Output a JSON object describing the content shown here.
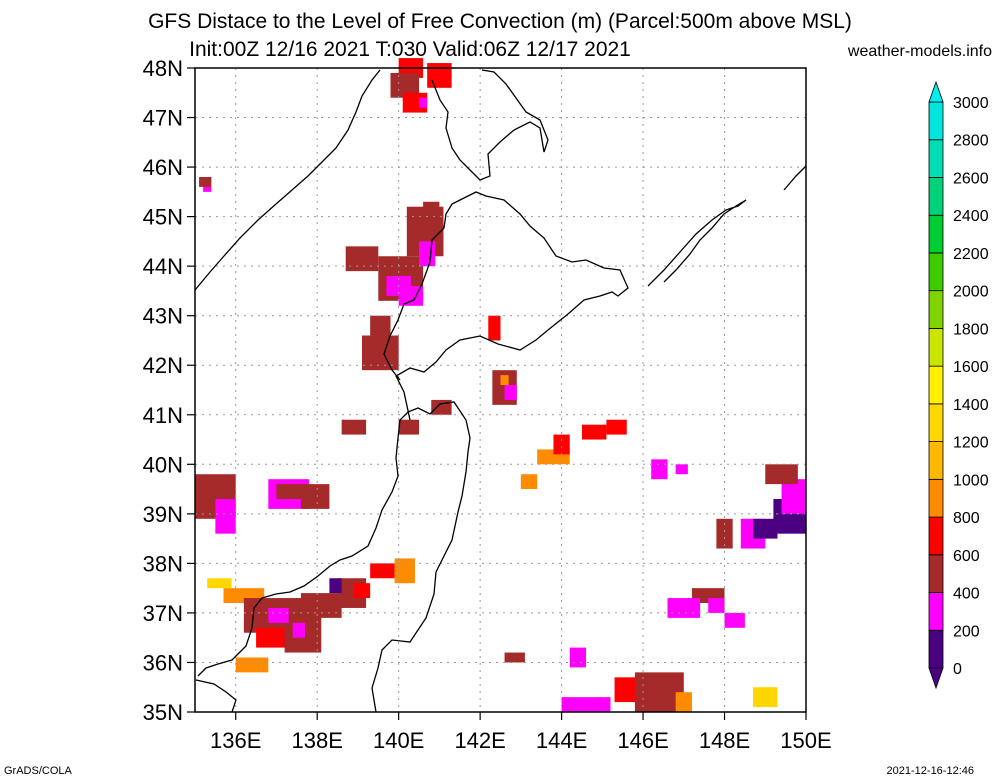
{
  "title_line1": "GFS Distace to the Level of Free Convection (m) (Parcel:500m above MSL)",
  "title_line2": "Init:00Z 12/16 2021 T:030 Valid:06Z 12/17 2021",
  "site": "weather-models.info",
  "footer_left": "GrADS/COLA",
  "footer_right": "2021-12-16-12:46",
  "map": {
    "lon_range": [
      135,
      150
    ],
    "lat_range": [
      35,
      48
    ],
    "lat_labels": [
      "35N",
      "36N",
      "37N",
      "38N",
      "39N",
      "40N",
      "41N",
      "42N",
      "43N",
      "44N",
      "45N",
      "46N",
      "47N",
      "48N"
    ],
    "lon_labels": [
      "136E",
      "138E",
      "140E",
      "142E",
      "144E",
      "146E",
      "148E",
      "150E"
    ],
    "lon_ticks": [
      136,
      138,
      140,
      142,
      144,
      146,
      148,
      150
    ],
    "colors": {
      "below_200": "#4b0082",
      "200_400": "#ff00ff",
      "400_600": "#a52a2a",
      "600_800": "#ff0000",
      "800_1000": "#ff8c00",
      "1000_1200": "#ffb800",
      "1200_1400": "#ffd700"
    },
    "cells": [
      [
        135.2,
        45.5,
        0.2,
        0.3,
        "magenta"
      ],
      [
        135.1,
        45.6,
        0.3,
        0.2,
        "brown"
      ],
      [
        140.0,
        47.8,
        0.6,
        0.4,
        "red"
      ],
      [
        139.8,
        47.4,
        0.7,
        0.5,
        "brown"
      ],
      [
        140.1,
        47.1,
        0.6,
        0.4,
        "red"
      ],
      [
        140.7,
        47.6,
        0.6,
        0.5,
        "red"
      ],
      [
        140.5,
        47.2,
        0.2,
        0.2,
        "magenta"
      ],
      [
        140.2,
        44.2,
        0.9,
        1.0,
        "brown"
      ],
      [
        140.6,
        44.8,
        0.4,
        0.5,
        "brown"
      ],
      [
        139.5,
        43.3,
        1.1,
        0.9,
        "brown"
      ],
      [
        139.7,
        43.4,
        0.6,
        0.4,
        "magenta"
      ],
      [
        140.0,
        43.2,
        0.6,
        0.4,
        "magenta"
      ],
      [
        140.5,
        44.0,
        0.4,
        0.5,
        "magenta"
      ],
      [
        138.7,
        43.9,
        0.8,
        0.5,
        "brown"
      ],
      [
        139.3,
        42.6,
        0.5,
        0.4,
        "brown"
      ],
      [
        139.1,
        41.9,
        0.9,
        0.7,
        "brown"
      ],
      [
        138.6,
        40.6,
        0.6,
        0.3,
        "brown"
      ],
      [
        140.0,
        40.6,
        0.5,
        0.3,
        "brown"
      ],
      [
        140.8,
        41.0,
        0.5,
        0.3,
        "brown"
      ],
      [
        142.3,
        41.2,
        0.6,
        0.7,
        "brown"
      ],
      [
        142.2,
        42.5,
        0.3,
        0.5,
        "red"
      ],
      [
        142.6,
        41.3,
        0.3,
        0.3,
        "magenta"
      ],
      [
        142.5,
        41.6,
        0.2,
        0.2,
        "orange"
      ],
      [
        135.0,
        38.9,
        1.0,
        0.9,
        "brown"
      ],
      [
        135.5,
        38.6,
        0.5,
        0.7,
        "magenta"
      ],
      [
        136.8,
        39.1,
        1.0,
        0.6,
        "magenta"
      ],
      [
        137.0,
        39.3,
        0.7,
        0.3,
        "brown"
      ],
      [
        137.6,
        39.1,
        0.7,
        0.5,
        "brown"
      ],
      [
        135.7,
        37.2,
        1.0,
        0.3,
        "orange"
      ],
      [
        135.3,
        37.5,
        0.6,
        0.2,
        "yellow"
      ],
      [
        136.2,
        36.6,
        1.5,
        0.7,
        "brown"
      ],
      [
        136.5,
        36.3,
        1.0,
        0.4,
        "red"
      ],
      [
        137.2,
        36.2,
        0.9,
        0.9,
        "brown"
      ],
      [
        137.4,
        36.5,
        0.3,
        0.3,
        "magenta"
      ],
      [
        137.6,
        36.9,
        1.0,
        0.5,
        "brown"
      ],
      [
        136.8,
        36.8,
        0.5,
        0.3,
        "magenta"
      ],
      [
        136.0,
        35.8,
        0.8,
        0.3,
        "orange"
      ],
      [
        138.5,
        37.1,
        0.7,
        0.6,
        "brown"
      ],
      [
        138.3,
        37.4,
        0.3,
        0.3,
        "indigo"
      ],
      [
        139.3,
        37.7,
        0.6,
        0.3,
        "red"
      ],
      [
        139.9,
        37.6,
        0.5,
        0.5,
        "orange"
      ],
      [
        138.9,
        37.3,
        0.4,
        0.3,
        "red"
      ],
      [
        143.4,
        40.0,
        0.8,
        0.3,
        "orange"
      ],
      [
        143.8,
        40.2,
        0.4,
        0.4,
        "red"
      ],
      [
        144.5,
        40.5,
        0.6,
        0.3,
        "red"
      ],
      [
        145.1,
        40.6,
        0.5,
        0.3,
        "red"
      ],
      [
        143.0,
        39.5,
        0.4,
        0.3,
        "orange"
      ],
      [
        146.2,
        39.7,
        0.4,
        0.4,
        "magenta"
      ],
      [
        146.8,
        39.8,
        0.3,
        0.2,
        "magenta"
      ],
      [
        147.8,
        38.3,
        0.4,
        0.6,
        "brown"
      ],
      [
        148.4,
        38.3,
        0.6,
        0.6,
        "magenta"
      ],
      [
        148.7,
        38.5,
        0.6,
        0.4,
        "indigo"
      ],
      [
        149.2,
        38.6,
        0.8,
        0.7,
        "indigo"
      ],
      [
        149.4,
        39.0,
        0.6,
        0.7,
        "magenta"
      ],
      [
        149.0,
        39.6,
        0.8,
        0.4,
        "brown"
      ],
      [
        147.2,
        37.2,
        0.8,
        0.3,
        "brown"
      ],
      [
        146.6,
        36.9,
        0.8,
        0.4,
        "magenta"
      ],
      [
        147.6,
        37.0,
        0.4,
        0.3,
        "magenta"
      ],
      [
        148.0,
        36.7,
        0.5,
        0.3,
        "magenta"
      ],
      [
        145.3,
        35.2,
        0.9,
        0.5,
        "red"
      ],
      [
        145.8,
        35.0,
        1.2,
        0.8,
        "brown"
      ],
      [
        144.0,
        35.0,
        1.0,
        0.3,
        "magenta"
      ],
      [
        144.9,
        35.0,
        0.3,
        0.3,
        "magenta"
      ],
      [
        146.8,
        35.0,
        0.4,
        0.4,
        "orange"
      ],
      [
        142.6,
        36.0,
        0.5,
        0.2,
        "brown"
      ],
      [
        144.2,
        35.9,
        0.4,
        0.4,
        "magenta"
      ],
      [
        148.7,
        35.1,
        0.6,
        0.4,
        "yellow"
      ]
    ]
  },
  "colorbar": {
    "labels": [
      "0",
      "200",
      "400",
      "600",
      "800",
      "1000",
      "1200",
      "1400",
      "1600",
      "1800",
      "2000",
      "2200",
      "2400",
      "2600",
      "2800",
      "3000"
    ],
    "colors": [
      "#4b0082",
      "#ff00ff",
      "#a52a2a",
      "#ff0000",
      "#ff8c00",
      "#ffb800",
      "#ffd700",
      "#ffef00",
      "#c8e600",
      "#7fd400",
      "#3ccc00",
      "#00cc33",
      "#00d27a",
      "#00dcb4",
      "#00e6dc",
      "#00f0f0"
    ]
  }
}
